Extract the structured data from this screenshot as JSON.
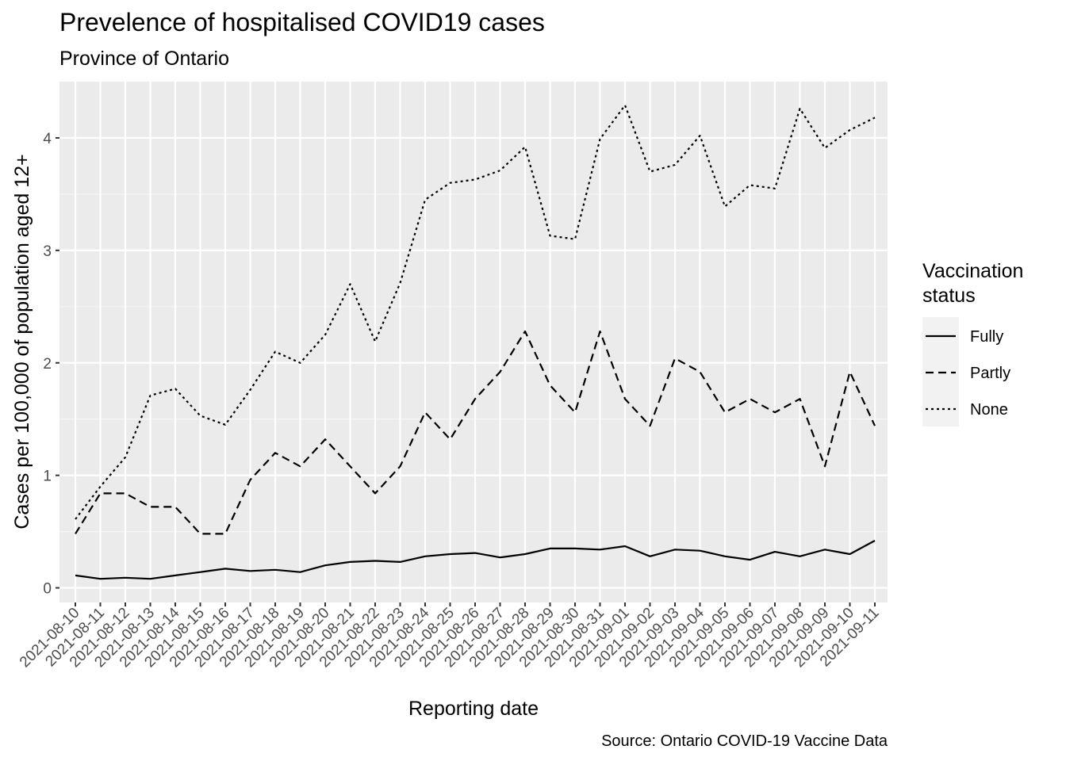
{
  "chart_data": {
    "type": "line",
    "title": "Prevelence of hospitalised COVID19 cases",
    "subtitle": "Province of Ontario",
    "xlabel": "Reporting date",
    "ylabel": "Cases per 100,000 of population aged 12+",
    "caption": "Source: Ontario COVID-19 Vaccine Data",
    "ylim": [
      -0.13,
      4.5
    ],
    "yticks": [
      0,
      1,
      2,
      3,
      4
    ],
    "grid": true,
    "legend_position": "right",
    "legend_title": [
      "Vaccination",
      "status"
    ],
    "x": [
      "2021-08-10",
      "2021-08-11",
      "2021-08-12",
      "2021-08-13",
      "2021-08-14",
      "2021-08-15",
      "2021-08-16",
      "2021-08-17",
      "2021-08-18",
      "2021-08-19",
      "2021-08-20",
      "2021-08-21",
      "2021-08-22",
      "2021-08-23",
      "2021-08-24",
      "2021-08-25",
      "2021-08-26",
      "2021-08-27",
      "2021-08-28",
      "2021-08-29",
      "2021-08-30",
      "2021-08-31",
      "2021-09-01",
      "2021-09-02",
      "2021-09-03",
      "2021-09-04",
      "2021-09-05",
      "2021-09-06",
      "2021-09-07",
      "2021-09-08",
      "2021-09-09",
      "2021-09-10",
      "2021-09-11"
    ],
    "series": [
      {
        "name": "Fully",
        "dash": "solid",
        "values": [
          0.11,
          0.08,
          0.09,
          0.08,
          0.11,
          0.14,
          0.17,
          0.15,
          0.16,
          0.14,
          0.2,
          0.23,
          0.24,
          0.23,
          0.28,
          0.3,
          0.31,
          0.27,
          0.3,
          0.35,
          0.35,
          0.34,
          0.37,
          0.28,
          0.34,
          0.33,
          0.28,
          0.25,
          0.32,
          0.28,
          0.34,
          0.3,
          0.42
        ]
      },
      {
        "name": "Partly",
        "dash": "dashed",
        "values": [
          0.48,
          0.84,
          0.84,
          0.72,
          0.72,
          0.48,
          0.48,
          0.96,
          1.2,
          1.08,
          1.32,
          1.08,
          0.84,
          1.08,
          1.56,
          1.32,
          1.68,
          1.92,
          2.28,
          1.8,
          1.56,
          2.28,
          1.68,
          1.44,
          2.04,
          1.92,
          1.56,
          1.68,
          1.56,
          1.68,
          1.08,
          1.92,
          1.44
        ]
      },
      {
        "name": "None",
        "dash": "dotted",
        "values": [
          0.61,
          0.9,
          1.16,
          1.71,
          1.77,
          1.53,
          1.45,
          1.76,
          2.1,
          2.0,
          2.25,
          2.7,
          2.19,
          2.71,
          3.45,
          3.6,
          3.63,
          3.71,
          3.92,
          3.13,
          3.1,
          3.99,
          4.29,
          3.7,
          3.76,
          4.02,
          3.39,
          3.58,
          3.55,
          4.26,
          3.91,
          4.07,
          4.18
        ]
      }
    ]
  }
}
